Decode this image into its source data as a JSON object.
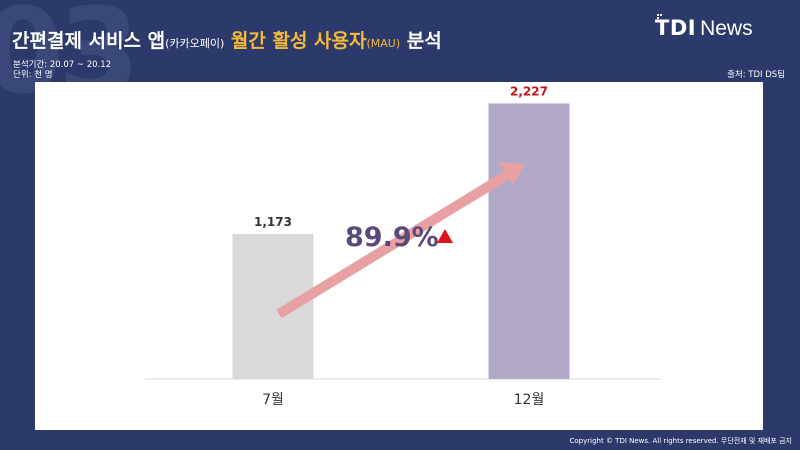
{
  "background_number": "03",
  "title": {
    "part1": "간편결제 서비스 앱",
    "part1_paren": "(카카오페이)",
    "part2": "월간 활성 사용자",
    "part2_paren": "(MAU)",
    "part3": "분석"
  },
  "meta": {
    "period": "분석기간: 20.07 ~ 20.12",
    "unit": "단위: 천 명"
  },
  "logo": {
    "brand": "TDI",
    "suffix": "News"
  },
  "source": "출처: TDI DS팀",
  "copyright": "Copyright © TDI News. All rights reserved. 무단전재 및 재배포 금지",
  "colors": {
    "background": "#2c3a6b",
    "bar_july": "#d9d9d9",
    "bar_december": "#b2a8c8",
    "highlight_value": "#c0141c",
    "growth_text": "#5a4a7c",
    "arrow": "#e8a0a2",
    "triangle": "#e0101a",
    "title_highlight": "#f5b93a"
  },
  "growth": {
    "text": "89.9%",
    "icon": "up-triangle-icon"
  },
  "chart_data": {
    "type": "bar",
    "categories": [
      "7월",
      "12월"
    ],
    "values": [
      1173,
      2227
    ],
    "value_labels": [
      "1,173",
      "2,227"
    ],
    "ylim": [
      0,
      2400
    ],
    "grid": false,
    "legend": "none"
  }
}
